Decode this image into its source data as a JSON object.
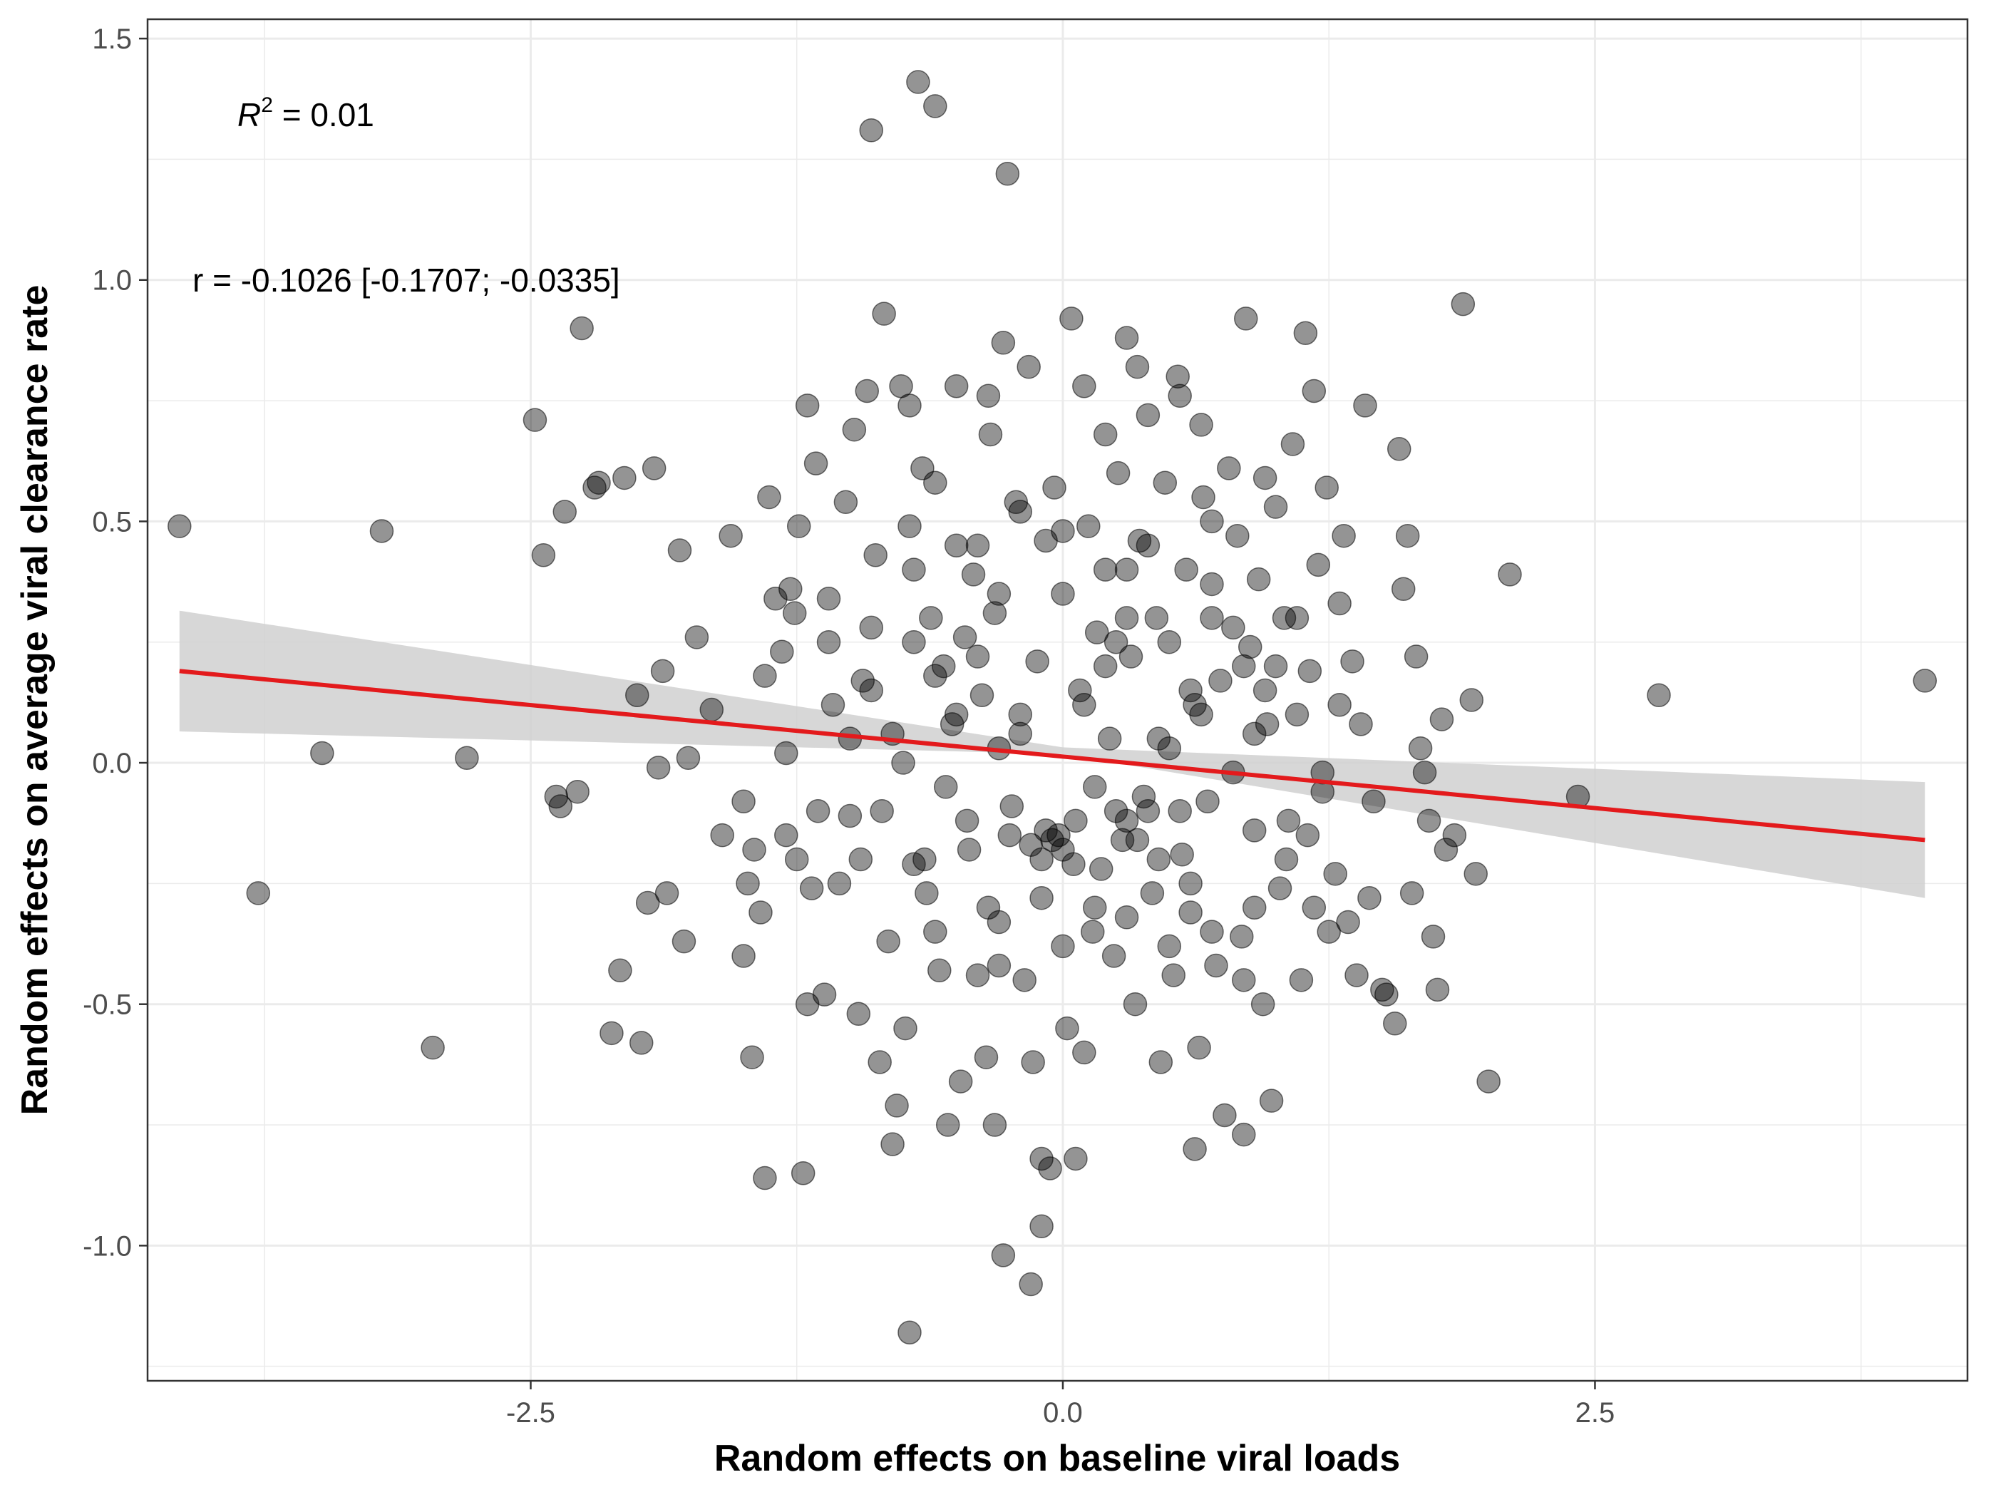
{
  "chart_data": {
    "type": "scatter",
    "xlabel": "Random effects on baseline viral loads",
    "ylabel": "Random effects on average viral clearance rate",
    "xlim": [
      -4.3,
      4.25
    ],
    "ylim": [
      -1.28,
      1.54
    ],
    "x_ticks": [
      -2.5,
      0.0,
      2.5
    ],
    "x_tick_labels": [
      "-2.5",
      "0.0",
      "2.5"
    ],
    "y_ticks": [
      -1.0,
      -0.5,
      0.0,
      0.5,
      1.0,
      1.5
    ],
    "y_tick_labels": [
      "-1.0",
      "-0.5",
      "0.0",
      "0.5",
      "1.0",
      "1.5"
    ],
    "grid": true,
    "annotations": {
      "r2_prefix": "R",
      "r2_superscript": "2",
      "r2_value": " = 0.01",
      "r_text": "r = -0.1026 [-0.1707; -0.0335]"
    },
    "regression": {
      "x": [
        -4.15,
        4.05
      ],
      "y": [
        0.19,
        -0.16
      ],
      "ci_lower": [
        0.065,
        -0.28
      ],
      "ci_upper": [
        0.315,
        -0.04
      ],
      "ci_center_x": 0.0,
      "ci_center": [
        0.018,
        0.032
      ]
    },
    "points": [
      [
        -4.15,
        0.49
      ],
      [
        -3.78,
        -0.27
      ],
      [
        -3.48,
        0.02
      ],
      [
        -3.2,
        0.48
      ],
      [
        -2.96,
        -0.59
      ],
      [
        -2.8,
        0.01
      ],
      [
        -2.48,
        0.71
      ],
      [
        -2.44,
        0.43
      ],
      [
        -2.38,
        -0.07
      ],
      [
        -2.36,
        -0.09
      ],
      [
        -2.34,
        0.52
      ],
      [
        -2.28,
        -0.06
      ],
      [
        -2.26,
        0.9
      ],
      [
        -2.2,
        0.57
      ],
      [
        -2.18,
        0.58
      ],
      [
        -2.12,
        -0.56
      ],
      [
        -2.08,
        -0.43
      ],
      [
        -2.06,
        0.59
      ],
      [
        -2.0,
        0.14
      ],
      [
        -1.98,
        -0.58
      ],
      [
        -1.95,
        -0.29
      ],
      [
        -1.92,
        0.61
      ],
      [
        -1.9,
        -0.01
      ],
      [
        -1.88,
        0.19
      ],
      [
        -1.86,
        -0.27
      ],
      [
        -1.8,
        0.44
      ],
      [
        -1.78,
        -0.37
      ],
      [
        -1.76,
        0.01
      ],
      [
        -1.72,
        0.26
      ],
      [
        -1.65,
        0.11
      ],
      [
        -1.6,
        -0.15
      ],
      [
        -1.56,
        0.47
      ],
      [
        -1.5,
        -0.4
      ],
      [
        -1.48,
        -0.25
      ],
      [
        -1.46,
        -0.61
      ],
      [
        -1.45,
        -0.18
      ],
      [
        -1.42,
        -0.31
      ],
      [
        -1.4,
        -0.86
      ],
      [
        -1.38,
        0.55
      ],
      [
        -1.35,
        0.34
      ],
      [
        -1.32,
        0.23
      ],
      [
        -1.3,
        -0.15
      ],
      [
        -1.28,
        0.36
      ],
      [
        -1.26,
        0.31
      ],
      [
        -1.24,
        0.49
      ],
      [
        -1.22,
        -0.85
      ],
      [
        -1.2,
        -0.5
      ],
      [
        -1.18,
        -0.26
      ],
      [
        -1.16,
        0.62
      ],
      [
        -1.12,
        -0.48
      ],
      [
        -1.1,
        0.34
      ],
      [
        -1.08,
        0.12
      ],
      [
        -1.05,
        -0.25
      ],
      [
        -1.02,
        0.54
      ],
      [
        -1.0,
        -0.11
      ],
      [
        -0.98,
        0.69
      ],
      [
        -0.96,
        -0.52
      ],
      [
        -0.94,
        0.17
      ],
      [
        -0.92,
        0.77
      ],
      [
        -0.9,
        0.28
      ],
      [
        -0.88,
        0.43
      ],
      [
        -0.86,
        -0.62
      ],
      [
        -0.84,
        0.93
      ],
      [
        -0.82,
        -0.37
      ],
      [
        -0.8,
        0.06
      ],
      [
        -0.78,
        -0.71
      ],
      [
        -0.76,
        0.78
      ],
      [
        -0.74,
        -0.55
      ],
      [
        -0.72,
        0.49
      ],
      [
        -0.7,
        -0.21
      ],
      [
        -0.68,
        1.41
      ],
      [
        -0.66,
        0.61
      ],
      [
        -0.64,
        -0.27
      ],
      [
        -0.62,
        0.3
      ],
      [
        -0.6,
        1.36
      ],
      [
        -0.58,
        -0.43
      ],
      [
        -0.56,
        0.2
      ],
      [
        -0.54,
        -0.75
      ],
      [
        -0.52,
        0.08
      ],
      [
        -0.5,
        0.45
      ],
      [
        -0.48,
        -0.66
      ],
      [
        -0.46,
        0.26
      ],
      [
        -0.44,
        -0.18
      ],
      [
        -0.42,
        0.39
      ],
      [
        -0.4,
        -0.44
      ],
      [
        -0.38,
        0.14
      ],
      [
        -0.36,
        -0.61
      ],
      [
        -0.34,
        0.68
      ],
      [
        -0.32,
        0.31
      ],
      [
        -0.3,
        -0.33
      ],
      [
        -0.28,
        0.87
      ],
      [
        -0.26,
        1.22
      ],
      [
        -0.24,
        -0.09
      ],
      [
        -0.22,
        0.54
      ],
      [
        -0.2,
        0.06
      ],
      [
        -0.18,
        -0.45
      ],
      [
        -0.16,
        0.82
      ],
      [
        -0.14,
        -0.62
      ],
      [
        -0.12,
        0.21
      ],
      [
        -0.1,
        -0.28
      ],
      [
        -0.08,
        0.46
      ],
      [
        -0.06,
        -0.84
      ],
      [
        -0.04,
        0.57
      ],
      [
        -0.02,
        -0.15
      ],
      [
        0.0,
        0.35
      ],
      [
        0.02,
        -0.55
      ],
      [
        0.04,
        0.92
      ],
      [
        0.06,
        -0.12
      ],
      [
        0.08,
        0.15
      ],
      [
        0.1,
        -0.6
      ],
      [
        0.12,
        0.49
      ],
      [
        0.14,
        -0.35
      ],
      [
        0.16,
        0.27
      ],
      [
        0.18,
        -0.22
      ],
      [
        0.2,
        0.68
      ],
      [
        0.22,
        0.05
      ],
      [
        0.24,
        -0.4
      ],
      [
        0.26,
        0.6
      ],
      [
        0.28,
        -0.16
      ],
      [
        0.3,
        0.88
      ],
      [
        0.32,
        0.22
      ],
      [
        0.34,
        -0.5
      ],
      [
        0.36,
        0.46
      ],
      [
        0.38,
        -0.07
      ],
      [
        0.4,
        0.72
      ],
      [
        0.42,
        -0.27
      ],
      [
        0.44,
        0.3
      ],
      [
        0.46,
        -0.62
      ],
      [
        0.48,
        0.58
      ],
      [
        0.5,
        0.03
      ],
      [
        0.52,
        -0.44
      ],
      [
        0.54,
        0.8
      ],
      [
        0.56,
        -0.19
      ],
      [
        0.58,
        0.4
      ],
      [
        0.6,
        -0.31
      ],
      [
        0.62,
        0.12
      ],
      [
        0.64,
        -0.59
      ],
      [
        0.66,
        0.55
      ],
      [
        0.68,
        -0.08
      ],
      [
        0.7,
        0.37
      ],
      [
        0.72,
        -0.42
      ],
      [
        0.74,
        0.17
      ],
      [
        0.76,
        -0.73
      ],
      [
        0.78,
        0.61
      ],
      [
        0.8,
        -0.02
      ],
      [
        0.82,
        0.47
      ],
      [
        0.84,
        -0.36
      ],
      [
        0.86,
        0.92
      ],
      [
        0.88,
        0.24
      ],
      [
        0.9,
        -0.14
      ],
      [
        0.92,
        0.38
      ],
      [
        0.94,
        -0.5
      ],
      [
        0.96,
        0.08
      ],
      [
        0.98,
        -0.7
      ],
      [
        1.0,
        0.53
      ],
      [
        1.02,
        -0.26
      ],
      [
        1.04,
        0.3
      ],
      [
        1.06,
        -0.12
      ],
      [
        1.08,
        0.66
      ],
      [
        1.1,
        0.1
      ],
      [
        1.12,
        -0.45
      ],
      [
        1.14,
        0.89
      ],
      [
        1.16,
        0.19
      ],
      [
        1.18,
        -0.3
      ],
      [
        1.2,
        0.41
      ],
      [
        1.22,
        -0.06
      ],
      [
        1.24,
        0.57
      ],
      [
        1.28,
        -0.23
      ],
      [
        1.3,
        0.33
      ],
      [
        1.32,
        0.47
      ],
      [
        1.34,
        -0.33
      ],
      [
        1.36,
        0.21
      ],
      [
        1.38,
        -0.44
      ],
      [
        1.4,
        0.08
      ],
      [
        1.42,
        0.74
      ],
      [
        1.44,
        -0.28
      ],
      [
        1.46,
        -0.08
      ],
      [
        1.5,
        -0.47
      ],
      [
        1.52,
        -0.48
      ],
      [
        1.56,
        -0.54
      ],
      [
        1.58,
        0.65
      ],
      [
        1.6,
        0.36
      ],
      [
        1.62,
        0.47
      ],
      [
        1.64,
        -0.27
      ],
      [
        1.66,
        0.22
      ],
      [
        1.68,
        0.03
      ],
      [
        1.7,
        -0.02
      ],
      [
        1.72,
        -0.12
      ],
      [
        1.74,
        -0.36
      ],
      [
        1.76,
        -0.47
      ],
      [
        1.78,
        0.09
      ],
      [
        1.8,
        -0.18
      ],
      [
        1.84,
        -0.15
      ],
      [
        1.88,
        0.95
      ],
      [
        1.92,
        0.13
      ],
      [
        1.94,
        -0.23
      ],
      [
        2.0,
        -0.66
      ],
      [
        2.1,
        0.39
      ],
      [
        2.42,
        -0.07
      ],
      [
        2.8,
        0.14
      ],
      [
        4.05,
        0.17
      ],
      [
        -0.9,
        1.31
      ],
      [
        -0.72,
        0.74
      ],
      [
        -0.5,
        0.78
      ],
      [
        -0.35,
        0.76
      ],
      [
        0.1,
        0.78
      ],
      [
        0.65,
        0.7
      ],
      [
        0.95,
        0.59
      ],
      [
        1.18,
        0.77
      ],
      [
        -1.2,
        0.74
      ],
      [
        -0.6,
        0.58
      ],
      [
        0.35,
        0.82
      ],
      [
        0.55,
        0.76
      ],
      [
        -0.28,
        -1.02
      ],
      [
        -0.15,
        -1.08
      ],
      [
        -0.72,
        -1.18
      ],
      [
        -0.1,
        -0.96
      ],
      [
        -0.1,
        -0.82
      ],
      [
        0.06,
        -0.82
      ],
      [
        -0.32,
        -0.75
      ],
      [
        0.62,
        -0.8
      ],
      [
        0.85,
        -0.77
      ],
      [
        -0.8,
        -0.79
      ],
      [
        1.22,
        -0.02
      ],
      [
        -0.3,
        0.03
      ],
      [
        -0.15,
        -0.17
      ],
      [
        -0.1,
        -0.2
      ],
      [
        -0.05,
        -0.16
      ],
      [
        0.0,
        -0.18
      ],
      [
        0.05,
        -0.21
      ],
      [
        -0.08,
        -0.14
      ],
      [
        0.3,
        -0.12
      ],
      [
        0.35,
        -0.16
      ],
      [
        0.4,
        -0.1
      ],
      [
        0.45,
        -0.2
      ],
      [
        0.3,
        0.3
      ],
      [
        0.25,
        0.25
      ],
      [
        0.6,
        -0.25
      ],
      [
        0.65,
        0.1
      ],
      [
        0.7,
        0.3
      ],
      [
        0.8,
        0.28
      ],
      [
        0.85,
        0.2
      ],
      [
        0.9,
        0.06
      ],
      [
        -0.4,
        0.22
      ],
      [
        -0.45,
        -0.12
      ],
      [
        -0.5,
        0.1
      ],
      [
        -0.55,
        -0.05
      ],
      [
        -0.6,
        0.18
      ],
      [
        -0.65,
        -0.2
      ],
      [
        -0.7,
        0.25
      ],
      [
        -0.75,
        0.0
      ],
      [
        -0.2,
        0.1
      ],
      [
        -0.25,
        -0.15
      ],
      [
        -0.3,
        0.35
      ],
      [
        -0.35,
        -0.3
      ],
      [
        0.1,
        0.12
      ],
      [
        0.15,
        -0.05
      ],
      [
        0.2,
        0.2
      ],
      [
        0.25,
        -0.1
      ],
      [
        0.15,
        -0.3
      ],
      [
        0.2,
        0.4
      ],
      [
        0.5,
        0.25
      ],
      [
        0.55,
        -0.1
      ],
      [
        0.6,
        0.15
      ],
      [
        0.45,
        0.05
      ],
      [
        0.4,
        0.45
      ],
      [
        0.5,
        -0.38
      ],
      [
        -0.9,
        0.15
      ],
      [
        -0.95,
        -0.2
      ],
      [
        -1.0,
        0.05
      ],
      [
        -0.85,
        -0.1
      ],
      [
        -1.1,
        0.25
      ],
      [
        -1.15,
        -0.1
      ],
      [
        1.0,
        0.2
      ],
      [
        1.05,
        -0.2
      ],
      [
        0.95,
        0.15
      ],
      [
        1.1,
        0.3
      ],
      [
        1.15,
        -0.15
      ],
      [
        0.9,
        -0.3
      ],
      [
        -0.6,
        -0.35
      ],
      [
        -0.3,
        -0.42
      ],
      [
        0.0,
        -0.38
      ],
      [
        0.3,
        -0.32
      ],
      [
        0.7,
        -0.35
      ],
      [
        0.85,
        -0.45
      ],
      [
        -0.4,
        0.45
      ],
      [
        0.0,
        0.48
      ],
      [
        0.3,
        0.4
      ],
      [
        0.7,
        0.5
      ],
      [
        -0.7,
        0.4
      ],
      [
        -0.2,
        0.52
      ],
      [
        -1.3,
        0.02
      ],
      [
        -1.4,
        0.18
      ],
      [
        -1.5,
        -0.08
      ],
      [
        -1.25,
        -0.2
      ],
      [
        1.3,
        0.12
      ],
      [
        1.25,
        -0.35
      ]
    ]
  }
}
